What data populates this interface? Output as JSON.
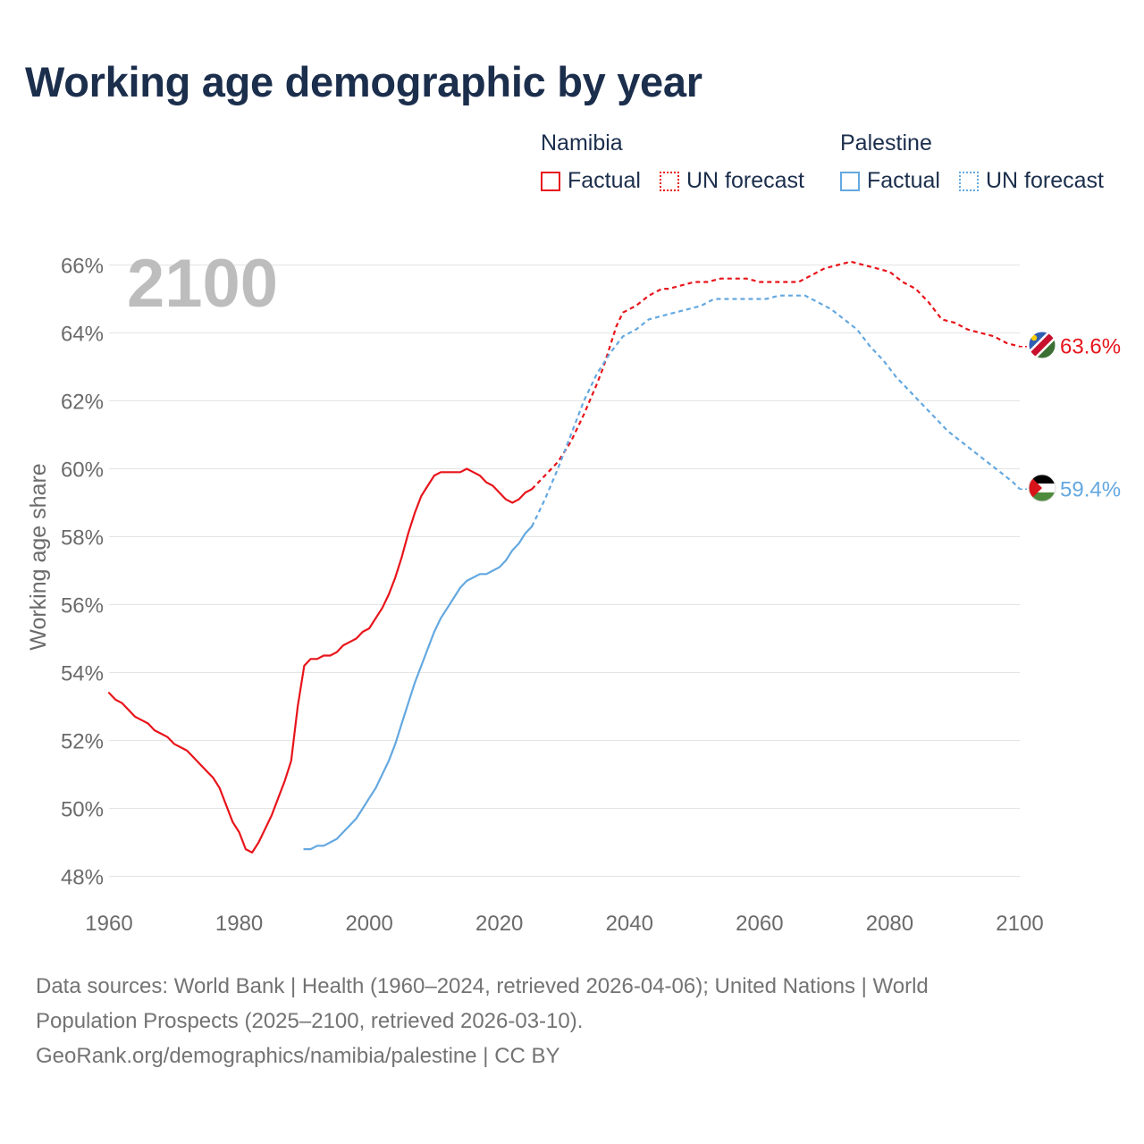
{
  "title": "Working age demographic by year",
  "colors": {
    "namibia": "#e8141b",
    "palestine": "#64a8e0",
    "grid": "#e4e4e4",
    "axis_text": "#6b6b6b",
    "year_watermark": "#bdbdbd",
    "title": "#1b2e4c"
  },
  "legend": {
    "group1": {
      "name": "Namibia",
      "factual": "Factual",
      "forecast": "UN forecast"
    },
    "group2": {
      "name": "Palestine",
      "factual": "Factual",
      "forecast": "UN forecast"
    }
  },
  "source": {
    "line1": "Data sources: World Bank | Health (1960–2024, retrieved 2026-04-06); United Nations | World",
    "line2": "Population Prospects (2025–2100, retrieved 2026-03-10).",
    "line3": "GeoRank.org/demographics/namibia/palestine | CC BY"
  },
  "chart_data": {
    "type": "line",
    "title": "Working age demographic by year",
    "year_label": "2100",
    "xlabel": "",
    "ylabel": "Working age share",
    "xlim": [
      1960,
      2100
    ],
    "ylim": [
      47.5,
      66.5
    ],
    "x_ticks": [
      1960,
      1980,
      2000,
      2020,
      2040,
      2060,
      2080,
      2100
    ],
    "y_ticks": [
      48,
      50,
      52,
      54,
      56,
      58,
      60,
      62,
      64,
      66
    ],
    "y_tick_labels": [
      "48%",
      "50%",
      "52%",
      "54%",
      "56%",
      "58%",
      "60%",
      "62%",
      "64%",
      "66%"
    ],
    "series": [
      {
        "name": "Namibia",
        "color": "#e8141b",
        "end_label": "63.6%",
        "factual": [
          [
            1960,
            53.4
          ],
          [
            1961,
            53.2
          ],
          [
            1962,
            53.1
          ],
          [
            1963,
            52.9
          ],
          [
            1964,
            52.7
          ],
          [
            1965,
            52.6
          ],
          [
            1966,
            52.5
          ],
          [
            1967,
            52.3
          ],
          [
            1968,
            52.2
          ],
          [
            1969,
            52.1
          ],
          [
            1970,
            51.9
          ],
          [
            1971,
            51.8
          ],
          [
            1972,
            51.7
          ],
          [
            1973,
            51.5
          ],
          [
            1974,
            51.3
          ],
          [
            1975,
            51.1
          ],
          [
            1976,
            50.9
          ],
          [
            1977,
            50.6
          ],
          [
            1978,
            50.1
          ],
          [
            1979,
            49.6
          ],
          [
            1980,
            49.3
          ],
          [
            1981,
            48.8
          ],
          [
            1982,
            48.7
          ],
          [
            1983,
            49.0
          ],
          [
            1984,
            49.4
          ],
          [
            1985,
            49.8
          ],
          [
            1986,
            50.3
          ],
          [
            1987,
            50.8
          ],
          [
            1988,
            51.4
          ],
          [
            1989,
            53.0
          ],
          [
            1990,
            54.2
          ],
          [
            1991,
            54.4
          ],
          [
            1992,
            54.4
          ],
          [
            1993,
            54.5
          ],
          [
            1994,
            54.5
          ],
          [
            1995,
            54.6
          ],
          [
            1996,
            54.8
          ],
          [
            1997,
            54.9
          ],
          [
            1998,
            55.0
          ],
          [
            1999,
            55.2
          ],
          [
            2000,
            55.3
          ],
          [
            2001,
            55.6
          ],
          [
            2002,
            55.9
          ],
          [
            2003,
            56.3
          ],
          [
            2004,
            56.8
          ],
          [
            2005,
            57.4
          ],
          [
            2006,
            58.1
          ],
          [
            2007,
            58.7
          ],
          [
            2008,
            59.2
          ],
          [
            2009,
            59.5
          ],
          [
            2010,
            59.8
          ],
          [
            2011,
            59.9
          ],
          [
            2012,
            59.9
          ],
          [
            2013,
            59.9
          ],
          [
            2014,
            59.9
          ],
          [
            2015,
            60.0
          ],
          [
            2016,
            59.9
          ],
          [
            2017,
            59.8
          ],
          [
            2018,
            59.6
          ],
          [
            2019,
            59.5
          ],
          [
            2020,
            59.3
          ],
          [
            2021,
            59.1
          ],
          [
            2022,
            59.0
          ],
          [
            2023,
            59.1
          ],
          [
            2024,
            59.3
          ],
          [
            2025,
            59.4
          ]
        ],
        "forecast": [
          [
            2025,
            59.4
          ],
          [
            2027,
            59.8
          ],
          [
            2029,
            60.2
          ],
          [
            2031,
            60.8
          ],
          [
            2033,
            61.6
          ],
          [
            2035,
            62.5
          ],
          [
            2036,
            63.0
          ],
          [
            2038,
            64.2
          ],
          [
            2039,
            64.6
          ],
          [
            2041,
            64.8
          ],
          [
            2043,
            65.1
          ],
          [
            2045,
            65.3
          ],
          [
            2046,
            65.3
          ],
          [
            2048,
            65.4
          ],
          [
            2050,
            65.5
          ],
          [
            2052,
            65.5
          ],
          [
            2054,
            65.6
          ],
          [
            2056,
            65.6
          ],
          [
            2058,
            65.6
          ],
          [
            2060,
            65.5
          ],
          [
            2062,
            65.5
          ],
          [
            2064,
            65.5
          ],
          [
            2066,
            65.5
          ],
          [
            2068,
            65.7
          ],
          [
            2070,
            65.9
          ],
          [
            2072,
            66.0
          ],
          [
            2074,
            66.1
          ],
          [
            2076,
            66.0
          ],
          [
            2078,
            65.9
          ],
          [
            2080,
            65.8
          ],
          [
            2082,
            65.5
          ],
          [
            2084,
            65.3
          ],
          [
            2086,
            64.9
          ],
          [
            2088,
            64.4
          ],
          [
            2090,
            64.3
          ],
          [
            2092,
            64.1
          ],
          [
            2094,
            64.0
          ],
          [
            2096,
            63.9
          ],
          [
            2098,
            63.7
          ],
          [
            2100,
            63.6
          ]
        ]
      },
      {
        "name": "Palestine",
        "color": "#64a8e0",
        "end_label": "59.4%",
        "factual": [
          [
            1990,
            48.8
          ],
          [
            1991,
            48.8
          ],
          [
            1992,
            48.9
          ],
          [
            1993,
            48.9
          ],
          [
            1994,
            49.0
          ],
          [
            1995,
            49.1
          ],
          [
            1996,
            49.3
          ],
          [
            1997,
            49.5
          ],
          [
            1998,
            49.7
          ],
          [
            1999,
            50.0
          ],
          [
            2000,
            50.3
          ],
          [
            2001,
            50.6
          ],
          [
            2002,
            51.0
          ],
          [
            2003,
            51.4
          ],
          [
            2004,
            51.9
          ],
          [
            2005,
            52.5
          ],
          [
            2006,
            53.1
          ],
          [
            2007,
            53.7
          ],
          [
            2008,
            54.2
          ],
          [
            2009,
            54.7
          ],
          [
            2010,
            55.2
          ],
          [
            2011,
            55.6
          ],
          [
            2012,
            55.9
          ],
          [
            2013,
            56.2
          ],
          [
            2014,
            56.5
          ],
          [
            2015,
            56.7
          ],
          [
            2016,
            56.8
          ],
          [
            2017,
            56.9
          ],
          [
            2018,
            56.9
          ],
          [
            2019,
            57.0
          ],
          [
            2020,
            57.1
          ],
          [
            2021,
            57.3
          ],
          [
            2022,
            57.6
          ],
          [
            2023,
            57.8
          ],
          [
            2024,
            58.1
          ],
          [
            2025,
            58.3
          ]
        ],
        "forecast": [
          [
            2025,
            58.3
          ],
          [
            2027,
            59.1
          ],
          [
            2029,
            60.0
          ],
          [
            2031,
            61.0
          ],
          [
            2033,
            62.0
          ],
          [
            2035,
            62.8
          ],
          [
            2037,
            63.4
          ],
          [
            2039,
            63.9
          ],
          [
            2041,
            64.1
          ],
          [
            2043,
            64.4
          ],
          [
            2045,
            64.5
          ],
          [
            2047,
            64.6
          ],
          [
            2049,
            64.7
          ],
          [
            2051,
            64.8
          ],
          [
            2053,
            65.0
          ],
          [
            2055,
            65.0
          ],
          [
            2057,
            65.0
          ],
          [
            2059,
            65.0
          ],
          [
            2061,
            65.0
          ],
          [
            2063,
            65.1
          ],
          [
            2065,
            65.1
          ],
          [
            2067,
            65.1
          ],
          [
            2069,
            64.9
          ],
          [
            2071,
            64.7
          ],
          [
            2073,
            64.4
          ],
          [
            2075,
            64.1
          ],
          [
            2077,
            63.6
          ],
          [
            2079,
            63.2
          ],
          [
            2081,
            62.7
          ],
          [
            2083,
            62.3
          ],
          [
            2085,
            61.9
          ],
          [
            2087,
            61.5
          ],
          [
            2089,
            61.1
          ],
          [
            2091,
            60.8
          ],
          [
            2093,
            60.5
          ],
          [
            2095,
            60.2
          ],
          [
            2097,
            59.9
          ],
          [
            2099,
            59.6
          ],
          [
            2100,
            59.4
          ]
        ]
      }
    ]
  }
}
